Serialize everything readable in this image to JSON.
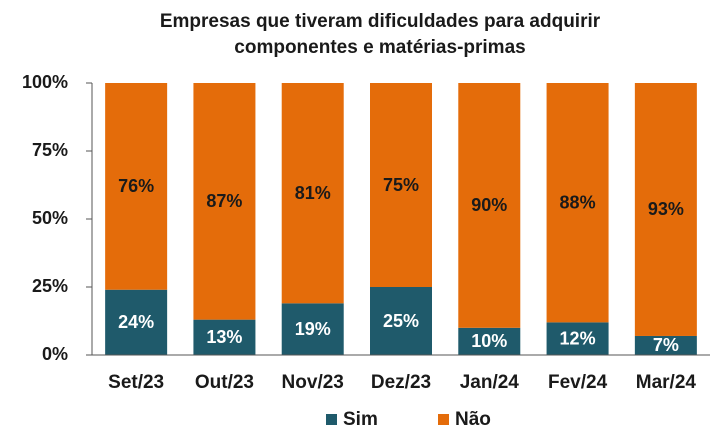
{
  "chart_data": {
    "type": "stacked_bar",
    "title": [
      "Empresas que tiveram dificuldades  para adquirir",
      "componentes e matérias-primas"
    ],
    "categories": [
      "Set/23",
      "Out/23",
      "Nov/23",
      "Dez/23",
      "Jan/24",
      "Fev/24",
      "Mar/24"
    ],
    "series": [
      {
        "name": "Sim",
        "color": "#1f5a6b",
        "label_color": "#ffffff",
        "values": [
          24,
          13,
          19,
          25,
          10,
          12,
          7
        ],
        "value_labels": [
          "24%",
          "13%",
          "19%",
          "25%",
          "10%",
          "12%",
          "7%"
        ]
      },
      {
        "name": "Não",
        "color": "#e46c0a",
        "label_color": "#1a1a1a",
        "values": [
          76,
          87,
          81,
          75,
          90,
          88,
          93
        ],
        "value_labels": [
          "76%",
          "87%",
          "81%",
          "75%",
          "90%",
          "88%",
          "93%"
        ]
      }
    ],
    "ylim": [
      0,
      100
    ],
    "yticks": [
      {
        "value": 0,
        "label": "0%"
      },
      {
        "value": 25,
        "label": "25%"
      },
      {
        "value": 50,
        "label": "50%"
      },
      {
        "value": 75,
        "label": "75%"
      },
      {
        "value": 100,
        "label": "100%"
      }
    ],
    "legend": "bottom"
  }
}
